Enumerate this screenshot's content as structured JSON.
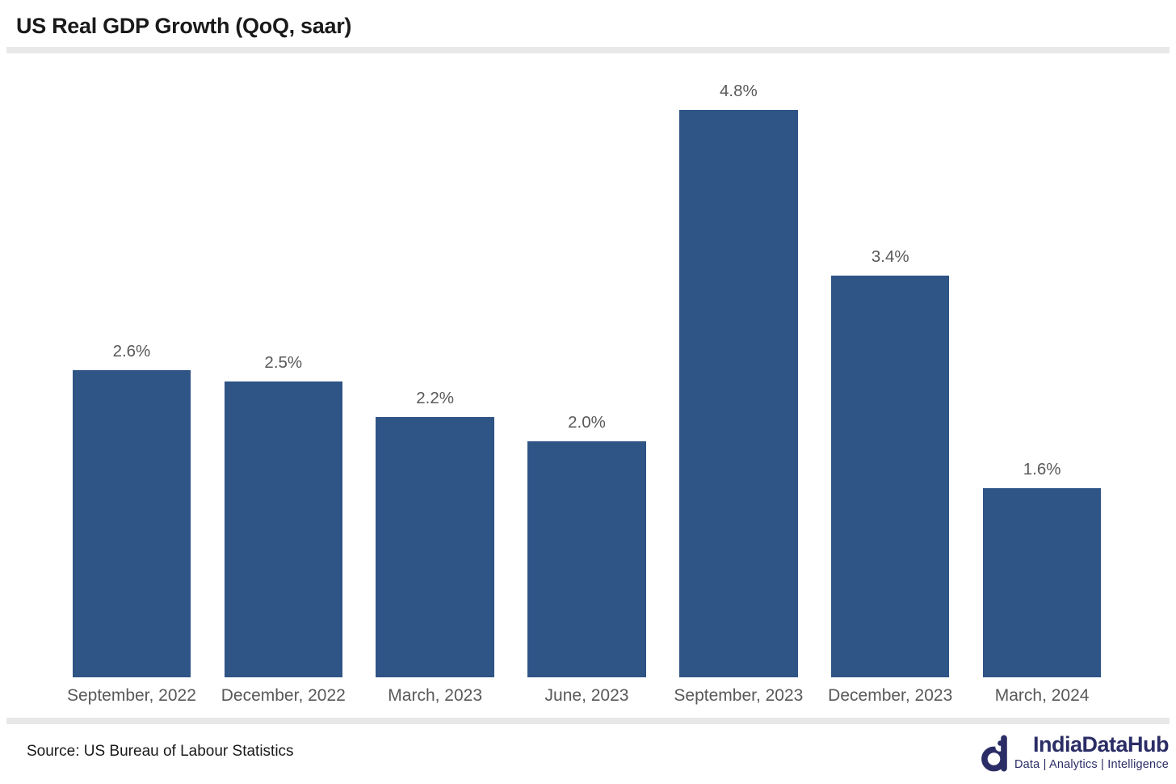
{
  "header": {
    "title": "US Real GDP Growth (QoQ, saar)"
  },
  "chart_data": {
    "type": "bar",
    "title": "US Real GDP Growth (QoQ, saar)",
    "categories": [
      "September, 2022",
      "December, 2022",
      "March, 2023",
      "June, 2023",
      "September, 2023",
      "December, 2023",
      "March, 2024"
    ],
    "values": [
      2.6,
      2.5,
      2.2,
      2.0,
      4.8,
      3.4,
      1.6
    ],
    "value_labels": [
      "2.6%",
      "2.5%",
      "2.2%",
      "2.0%",
      "4.8%",
      "3.4%",
      "1.6%"
    ],
    "xlabel": "",
    "ylabel": "",
    "ylim": [
      0,
      5.28
    ],
    "grid": false,
    "legend": false,
    "bar_color": "#2f5486",
    "data_label_color": "#595959",
    "axis_label_color": "#595959"
  },
  "footer": {
    "source": "Source: US Bureau of Labour Statistics",
    "logo": {
      "name": "IndiaDataHub",
      "tagline": "Data | Analytics | Intelligence",
      "color": "#2b2d66"
    }
  }
}
